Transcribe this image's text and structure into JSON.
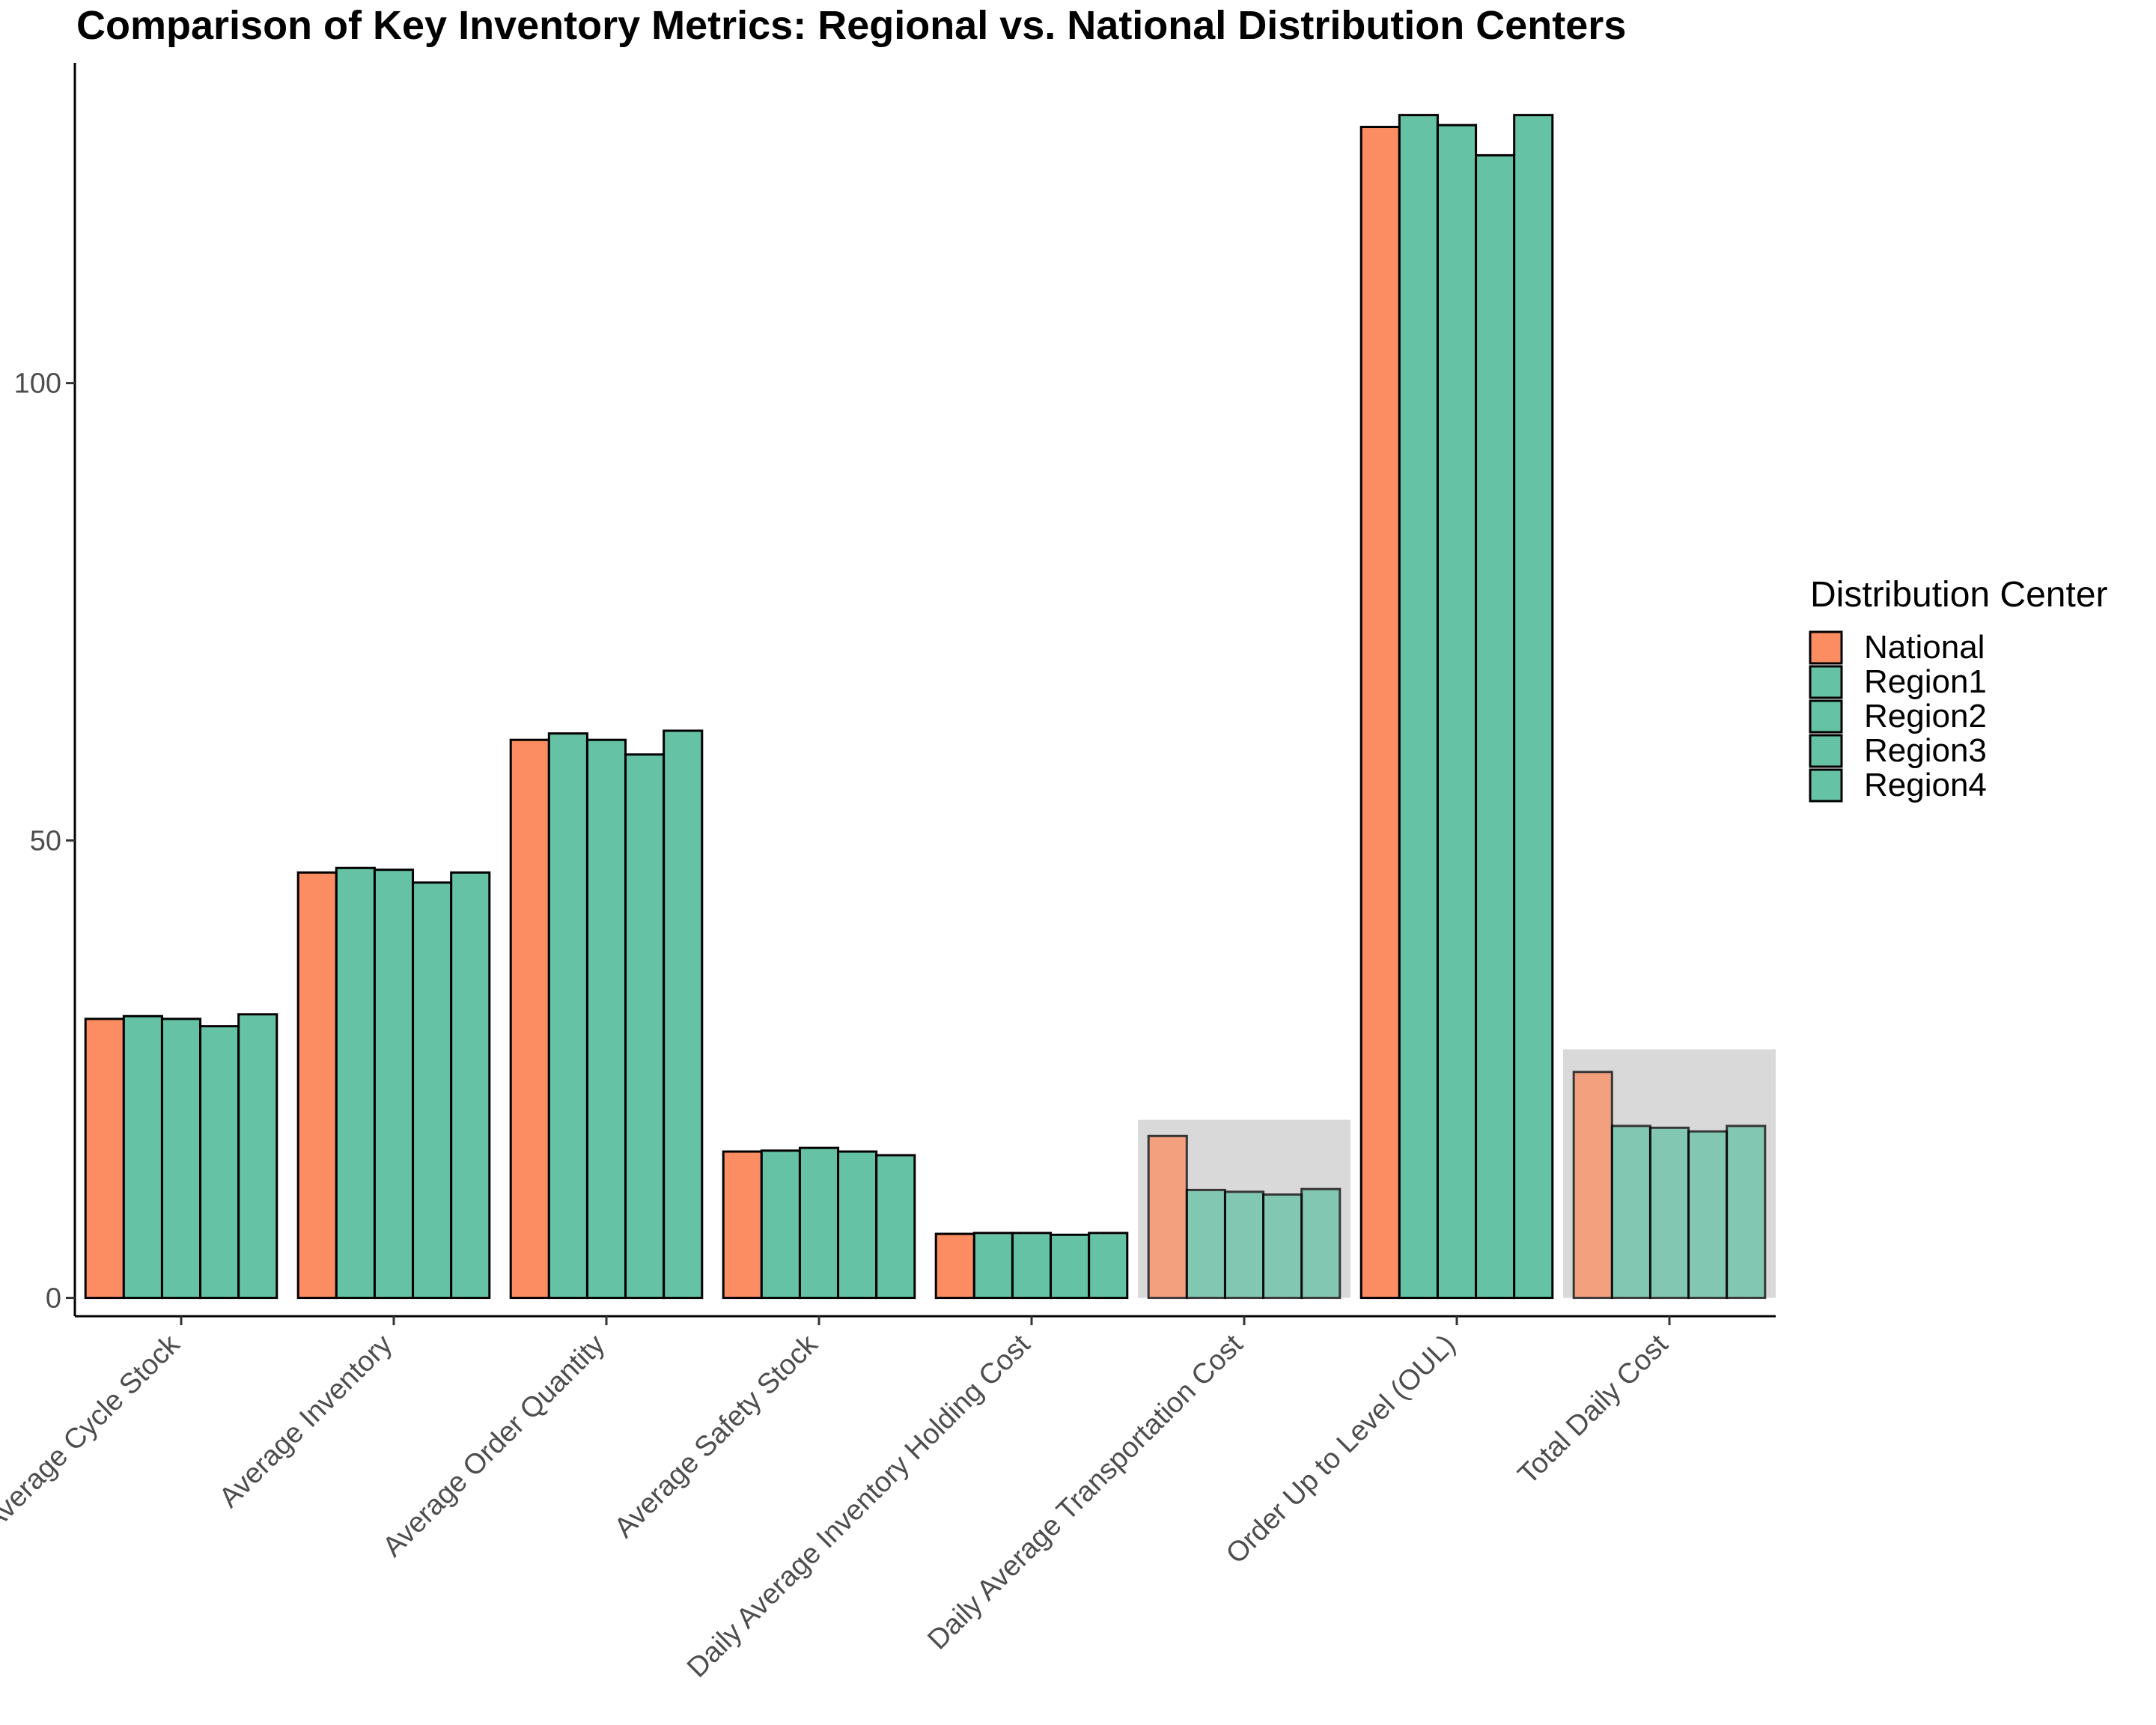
{
  "chart_data": {
    "type": "bar",
    "title": "Comparison of Key Inventory Metrics: Regional vs. National Distribution Centers",
    "xlabel": "",
    "ylabel": "",
    "ylim": [
      -2,
      135
    ],
    "yticks": [
      0,
      50,
      100
    ],
    "grid": false,
    "legend": {
      "title": "Distribution Center",
      "position": "right"
    },
    "categories": [
      "Average Cycle Stock",
      "Average Inventory",
      "Average Order Quantity",
      "Average Safety Stock",
      "Daily Average Inventory Holding Cost",
      "Daily Average Transportation Cost",
      "Order Up to Level (OUL)",
      "Total Daily Cost"
    ],
    "highlighted_categories": [
      "Daily Average Transportation Cost",
      "Total Daily Cost"
    ],
    "colors": {
      "National": "#fc8d62",
      "Region": "#66c2a5",
      "highlight_band": "#d9d9d9",
      "bar_outline": "#000000"
    },
    "series": [
      {
        "name": "National",
        "values": [
          30.5,
          46.5,
          61.0,
          16.0,
          7.0,
          17.7,
          128.0,
          24.7
        ]
      },
      {
        "name": "Region1",
        "values": [
          30.8,
          47.0,
          61.7,
          16.1,
          7.1,
          11.8,
          129.3,
          18.8
        ]
      },
      {
        "name": "Region2",
        "values": [
          30.5,
          46.8,
          61.0,
          16.4,
          7.1,
          11.6,
          128.2,
          18.6
        ]
      },
      {
        "name": "Region3",
        "values": [
          29.7,
          45.4,
          59.4,
          16.0,
          6.9,
          11.3,
          124.9,
          18.2
        ]
      },
      {
        "name": "Region4",
        "values": [
          31.0,
          46.5,
          62.0,
          15.6,
          7.1,
          11.9,
          129.3,
          18.8
        ]
      }
    ]
  }
}
